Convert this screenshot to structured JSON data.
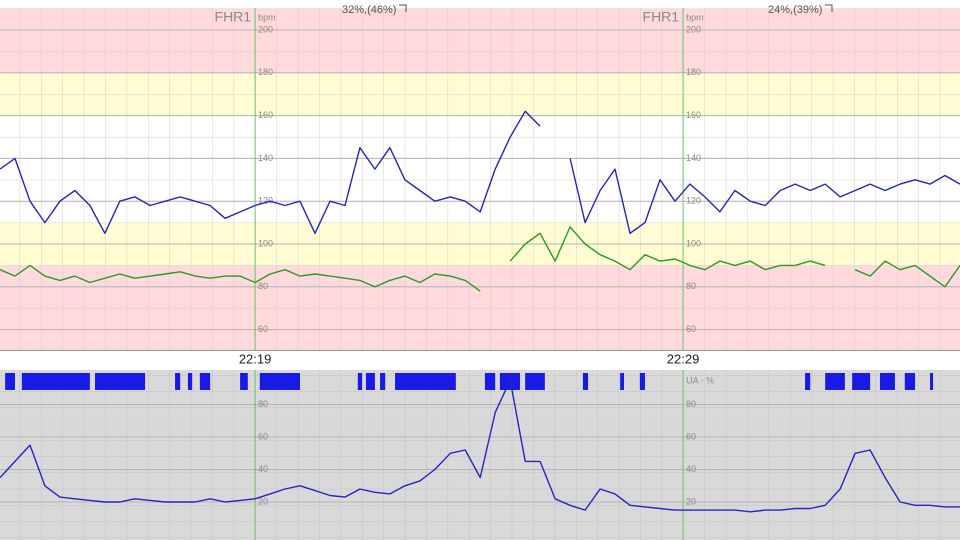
{
  "chart_data": [
    {
      "type": "line",
      "title": "FHR1",
      "y_unit": "bpm",
      "annotations": [
        "32%,(46%)",
        "24%,(39%)"
      ],
      "xlim": [
        1333.04,
        1355.47
      ],
      "xticks": [
        {
          "value": 1339,
          "label": "22:19"
        },
        {
          "value": 1349,
          "label": "22:29"
        }
      ],
      "ylim": [
        50,
        210
      ],
      "yticks": [
        60,
        80,
        100,
        120,
        140,
        160,
        180,
        200
      ],
      "zones": [
        {
          "from": 180,
          "to": 210,
          "color": "#ffd9dc"
        },
        {
          "from": 160,
          "to": 180,
          "color": "#fffbd2"
        },
        {
          "from": 110,
          "to": 160,
          "color": "#ffffff"
        },
        {
          "from": 90,
          "to": 110,
          "color": "#fffbd2"
        },
        {
          "from": 50,
          "to": 90,
          "color": "#ffd9dc"
        }
      ],
      "x": [
        1333.04,
        1333.39,
        1333.74,
        1334.09,
        1334.44,
        1334.79,
        1335.14,
        1335.49,
        1335.84,
        1336.19,
        1336.55,
        1336.9,
        1337.25,
        1337.6,
        1337.95,
        1338.3,
        1338.65,
        1339.0,
        1339.35,
        1339.7,
        1340.05,
        1340.4,
        1340.75,
        1341.1,
        1341.45,
        1341.8,
        1342.15,
        1342.5,
        1342.85,
        1343.2,
        1343.56,
        1343.91,
        1344.26,
        1344.61,
        1344.96,
        1345.31,
        1345.66,
        1346.01,
        1346.36,
        1346.71,
        1347.06,
        1347.41,
        1347.76,
        1348.11,
        1348.46,
        1348.81,
        1349.16,
        1349.51,
        1349.86,
        1350.21,
        1350.57,
        1350.92,
        1351.27,
        1351.62,
        1351.97,
        1352.32,
        1352.67,
        1353.02,
        1353.37,
        1353.72,
        1354.07,
        1354.42,
        1354.77,
        1355.12,
        1355.47
      ],
      "series": [
        {
          "color": "#2424c8",
          "values": [
            135,
            140,
            120,
            110,
            120,
            125,
            118,
            105,
            120,
            122,
            118,
            120,
            122,
            120,
            118,
            112,
            115,
            118,
            120,
            118,
            120,
            105,
            120,
            118,
            145,
            135,
            145,
            130,
            125,
            120,
            122,
            120,
            115,
            135,
            150,
            162,
            155,
            null,
            140,
            110,
            125,
            135,
            105,
            110,
            130,
            120,
            128,
            122,
            115,
            125,
            120,
            118,
            125,
            128,
            125,
            128,
            122,
            125,
            128,
            125,
            128,
            130,
            128,
            132,
            128
          ]
        },
        {
          "color": "#22a022",
          "values": [
            88,
            85,
            90,
            85,
            83,
            85,
            82,
            84,
            86,
            84,
            85,
            86,
            87,
            85,
            84,
            85,
            85,
            82,
            86,
            88,
            85,
            86,
            85,
            84,
            83,
            80,
            83,
            85,
            82,
            86,
            85,
            83,
            78,
            null,
            92,
            100,
            105,
            92,
            108,
            100,
            95,
            92,
            88,
            95,
            92,
            93,
            90,
            88,
            92,
            90,
            92,
            88,
            90,
            90,
            92,
            90,
            null,
            88,
            85,
            92,
            88,
            90,
            85,
            80,
            90
          ]
        }
      ]
    },
    {
      "type": "line",
      "y_label": "UA - %",
      "xlim": [
        1333.04,
        1355.47
      ],
      "xticks": [
        {
          "value": 1339,
          "label": "22:19"
        },
        {
          "value": 1349,
          "label": "22:29"
        }
      ],
      "ylim": [
        0,
        100
      ],
      "yticks": [
        20,
        40,
        60,
        80
      ],
      "event_color": "#1a1ae6",
      "events": [
        [
          1333.16,
          1333.39
        ],
        [
          1333.55,
          1335.14
        ],
        [
          1335.26,
          1336.43
        ],
        [
          1337.13,
          1337.25
        ],
        [
          1337.43,
          1337.53
        ],
        [
          1337.71,
          1337.95
        ],
        [
          1338.65,
          1338.83
        ],
        [
          1339.11,
          1340.05
        ],
        [
          1341.4,
          1341.5
        ],
        [
          1341.59,
          1341.8
        ],
        [
          1341.92,
          1342.04
        ],
        [
          1342.27,
          1343.69
        ],
        [
          1344.37,
          1344.61
        ],
        [
          1344.72,
          1345.19
        ],
        [
          1345.31,
          1345.77
        ],
        [
          1346.66,
          1346.78
        ],
        [
          1347.53,
          1347.62
        ],
        [
          1347.99,
          1348.11
        ],
        [
          1351.85,
          1351.97
        ],
        [
          1352.32,
          1352.78
        ],
        [
          1352.95,
          1353.37
        ],
        [
          1353.6,
          1353.95
        ],
        [
          1354.18,
          1354.42
        ],
        [
          1354.77,
          1354.84
        ]
      ],
      "x": [
        1333.04,
        1333.39,
        1333.74,
        1334.09,
        1334.44,
        1334.79,
        1335.14,
        1335.49,
        1335.84,
        1336.19,
        1336.55,
        1336.9,
        1337.25,
        1337.6,
        1337.95,
        1338.3,
        1338.65,
        1339.0,
        1339.35,
        1339.7,
        1340.05,
        1340.4,
        1340.75,
        1341.1,
        1341.45,
        1341.8,
        1342.15,
        1342.5,
        1342.85,
        1343.2,
        1343.56,
        1343.91,
        1344.26,
        1344.61,
        1344.96,
        1345.31,
        1345.66,
        1346.01,
        1346.36,
        1346.71,
        1347.06,
        1347.41,
        1347.76,
        1348.11,
        1348.46,
        1348.81,
        1349.16,
        1349.51,
        1349.86,
        1350.21,
        1350.57,
        1350.92,
        1351.27,
        1351.62,
        1351.97,
        1352.32,
        1352.67,
        1353.02,
        1353.37,
        1353.72,
        1354.07,
        1354.42,
        1354.77,
        1355.12,
        1355.47
      ],
      "series": [
        {
          "color": "#2424c8",
          "values": [
            35,
            45,
            55,
            30,
            23,
            22,
            21,
            20,
            20,
            22,
            21,
            20,
            20,
            20,
            22,
            20,
            21,
            22,
            25,
            28,
            30,
            27,
            24,
            23,
            28,
            26,
            25,
            30,
            33,
            40,
            50,
            52,
            35,
            75,
            95,
            45,
            45,
            22,
            18,
            15,
            28,
            25,
            18,
            17,
            16,
            15,
            15,
            15,
            15,
            15,
            14,
            15,
            15,
            16,
            16,
            18,
            28,
            50,
            52,
            35,
            20,
            18,
            18,
            17,
            17
          ]
        }
      ]
    }
  ]
}
